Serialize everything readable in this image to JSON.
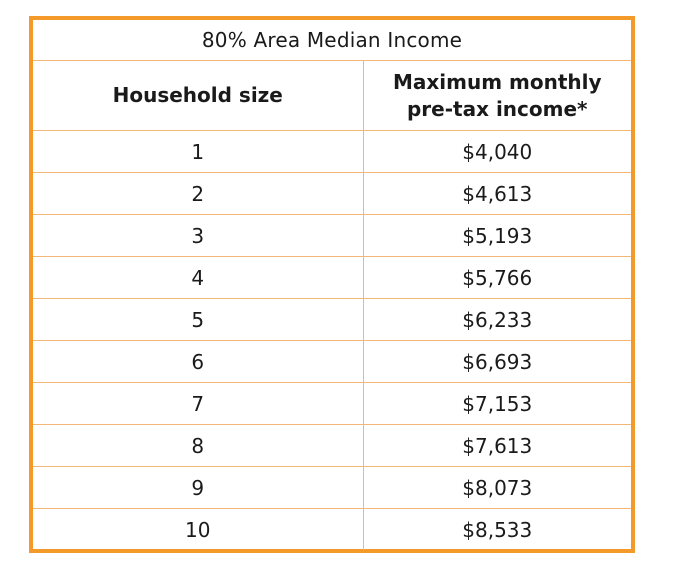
{
  "table": {
    "title": "80% Area Median Income",
    "headers": {
      "household_size": "Household size",
      "max_income_line1": "Maximum monthly",
      "max_income_line2": "pre-tax income*"
    },
    "rows": [
      {
        "size": "1",
        "income": "$4,040"
      },
      {
        "size": "2",
        "income": "$4,613"
      },
      {
        "size": "3",
        "income": "$5,193"
      },
      {
        "size": "4",
        "income": "$5,766"
      },
      {
        "size": "5",
        "income": "$6,233"
      },
      {
        "size": "6",
        "income": "$6,693"
      },
      {
        "size": "7",
        "income": "$7,153"
      },
      {
        "size": "8",
        "income": "$7,613"
      },
      {
        "size": "9",
        "income": "$8,073"
      },
      {
        "size": "10",
        "income": "$8,533"
      }
    ]
  },
  "colors": {
    "outer_border": "#f39a2b",
    "inner_border": "#f3b878"
  }
}
